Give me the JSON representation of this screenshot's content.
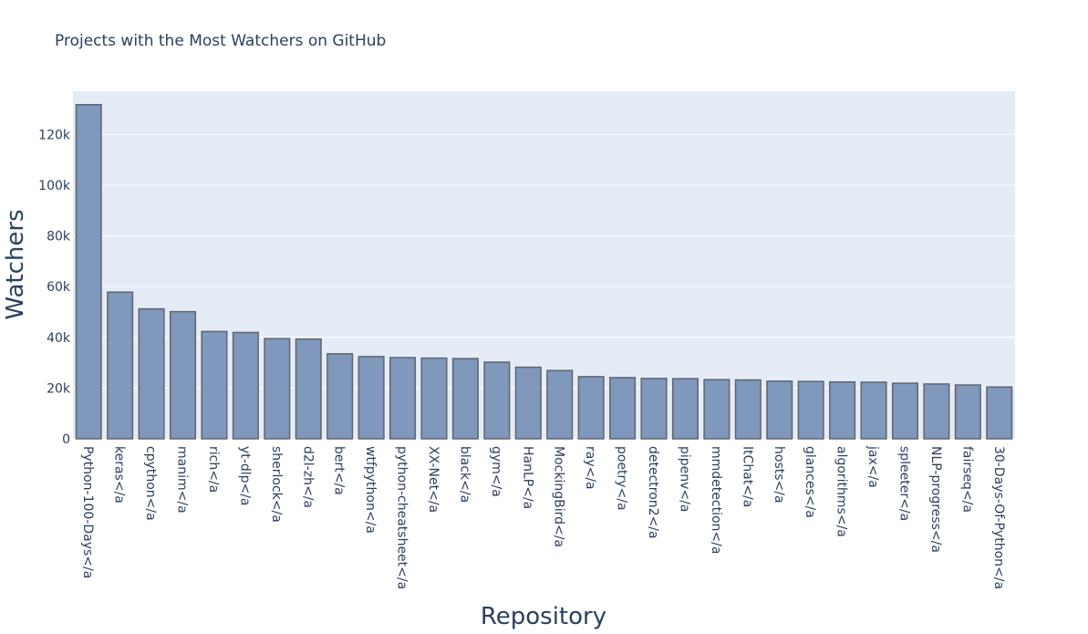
{
  "chart_data": {
    "type": "bar",
    "title": "Projects with the Most Watchers on GitHub",
    "xlabel": "Repository",
    "ylabel": "Watchers",
    "ylim": [
      0,
      137000
    ],
    "yticks": [
      0,
      20000,
      40000,
      60000,
      80000,
      100000,
      120000
    ],
    "ytick_labels": [
      "0",
      "20k",
      "40k",
      "60k",
      "80k",
      "100k",
      "120k"
    ],
    "grid": true,
    "legend": "none",
    "colors": {
      "bar": "#7f98bb",
      "plot_bg": "#e5ecf6",
      "text": "#2a3f5f"
    },
    "categories": [
      "Python-100-Days</a",
      "keras</a",
      "cpython</a",
      "manim</a",
      "rich</a",
      "yt-dlp</a",
      "sherlock</a",
      "d2l-zh</a",
      "bert</a",
      "wtfpython</a",
      "python-cheatsheet</a",
      "XX-Net</a",
      "black</a",
      "gym</a",
      "HanLP</a",
      "MockingBird</a",
      "ray</a",
      "poetry</a",
      "detectron2</a",
      "pipenv</a",
      "mmdetection</a",
      "ItChat</a",
      "hosts</a",
      "glances</a",
      "algorithms</a",
      "jax</a",
      "spleeter</a",
      "NLP-progress</a",
      "fairseq</a",
      "30-Days-Of-Python</a"
    ],
    "values": [
      131700,
      57800,
      51200,
      50100,
      42300,
      41900,
      39500,
      39300,
      33500,
      32400,
      32000,
      31800,
      31600,
      30200,
      28200,
      26900,
      24500,
      24100,
      23800,
      23700,
      23300,
      23200,
      22700,
      22600,
      22400,
      22300,
      21900,
      21600,
      21200,
      20400
    ]
  }
}
